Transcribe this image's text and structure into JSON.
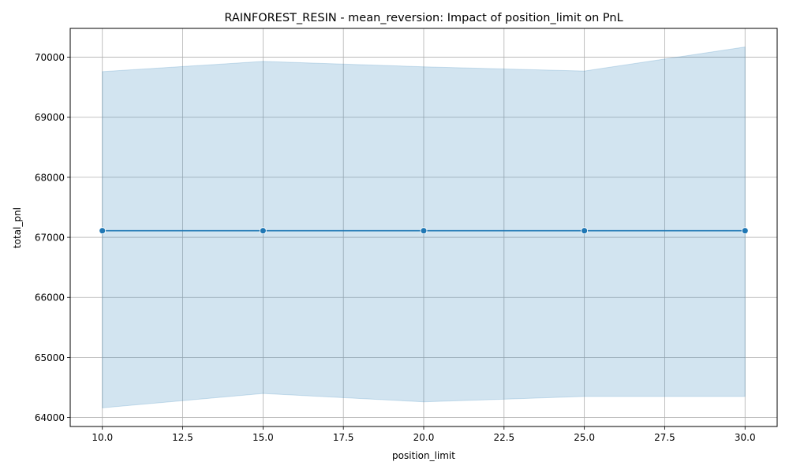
{
  "chart_data": {
    "type": "line",
    "title": "RAINFOREST_RESIN - mean_reversion: Impact of position_limit on PnL",
    "xlabel": "position_limit",
    "ylabel": "total_pnl",
    "xlim": [
      9,
      31
    ],
    "ylim": [
      63850,
      70480
    ],
    "x_ticks": [
      10.0,
      12.5,
      15.0,
      17.5,
      20.0,
      22.5,
      25.0,
      27.5,
      30.0
    ],
    "x_tick_labels": [
      "10.0",
      "12.5",
      "15.0",
      "17.5",
      "20.0",
      "22.5",
      "25.0",
      "27.5",
      "30.0"
    ],
    "y_ticks": [
      64000,
      65000,
      66000,
      67000,
      68000,
      69000,
      70000
    ],
    "y_tick_labels": [
      "64000",
      "65000",
      "66000",
      "67000",
      "68000",
      "69000",
      "70000"
    ],
    "grid": true,
    "series": [
      {
        "x": [
          10,
          15,
          20,
          25,
          30
        ],
        "values": [
          67110,
          67110,
          67110,
          67110,
          67110
        ],
        "ci_upper": [
          69760,
          69930,
          69840,
          69770,
          70170
        ],
        "ci_lower": [
          64160,
          64400,
          64260,
          64350,
          64350
        ]
      }
    ],
    "colors": {
      "line": "#1f77b4",
      "band": "#1f77b4",
      "grid": "#b0b0b0",
      "axis": "#000000"
    }
  }
}
